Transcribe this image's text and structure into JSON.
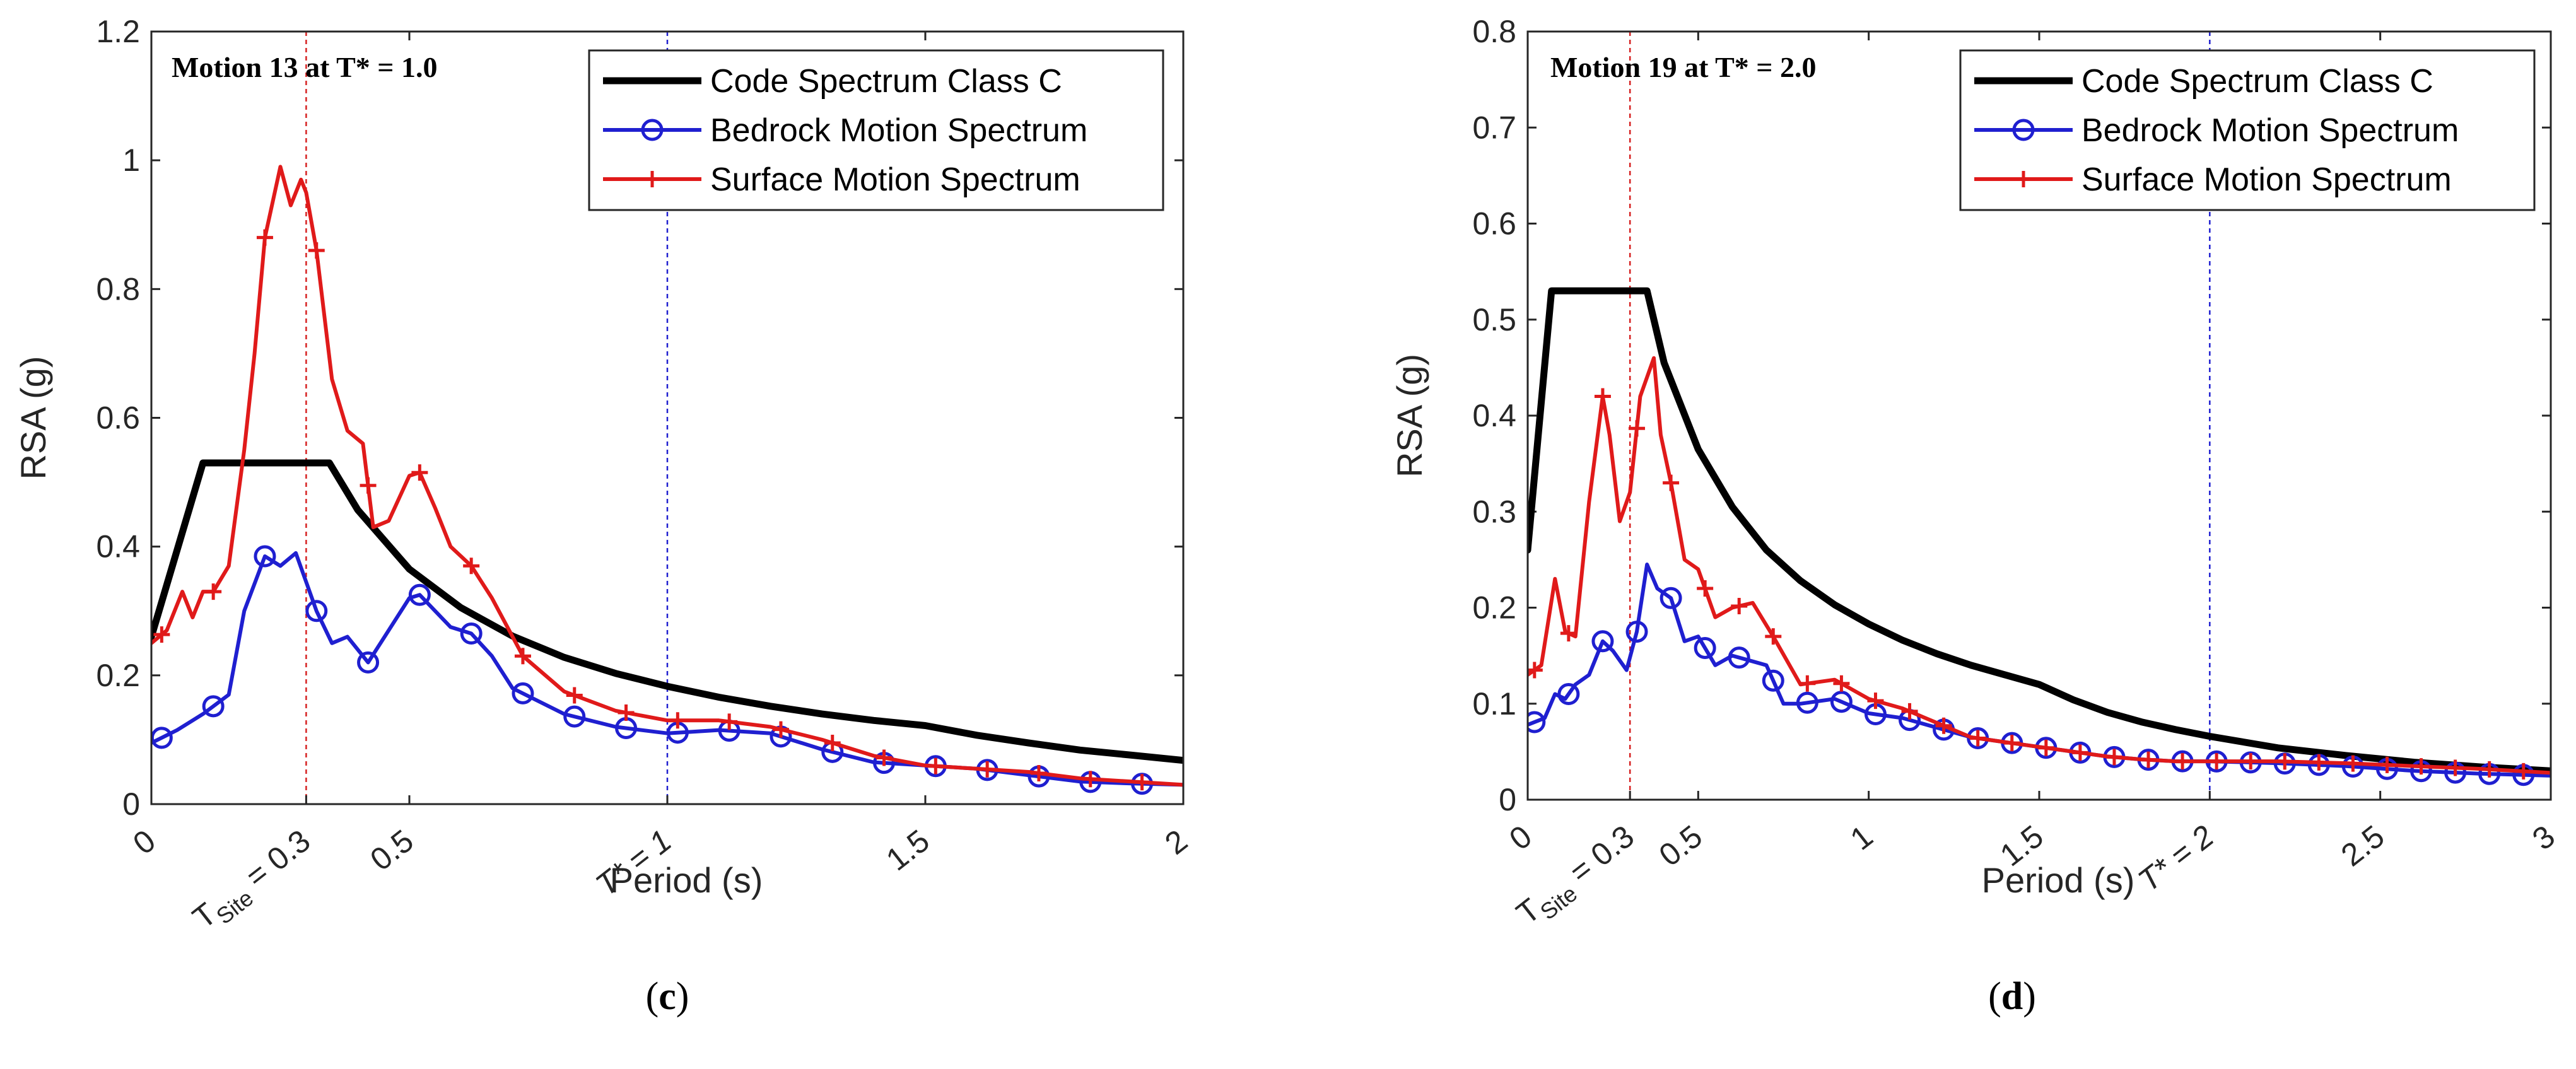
{
  "chart_data": [
    {
      "type": "line",
      "panel": "c",
      "caption_letter": "c",
      "annotation": "Motion 13 at T* = 1.0",
      "xlabel": "Period (s)",
      "ylabel": "RSA (g)",
      "xlim": [
        0,
        2
      ],
      "ylim": [
        0,
        1.2
      ],
      "xticks": [
        {
          "v": 0,
          "label": "0"
        },
        {
          "v": 0.5,
          "label": "0.5"
        },
        {
          "v": 1.5,
          "label": "1.5"
        },
        {
          "v": 2,
          "label": "2"
        }
      ],
      "yticks": [
        {
          "v": 0,
          "label": "0"
        },
        {
          "v": 0.2,
          "label": "0.2"
        },
        {
          "v": 0.4,
          "label": "0.4"
        },
        {
          "v": 0.6,
          "label": "0.6"
        },
        {
          "v": 0.8,
          "label": "0.8"
        },
        {
          "v": 1.0,
          "label": "1"
        },
        {
          "v": 1.2,
          "label": "1.2"
        }
      ],
      "vlines": [
        {
          "x": 0.3,
          "label": "T_Site = 0.3",
          "label_main": "T",
          "label_sub": "Site",
          "label_rest": " = 0.3",
          "color": "#d62020"
        },
        {
          "x": 1.0,
          "label": "T* = 1",
          "color": "#2020d0"
        }
      ],
      "series": [
        {
          "name": "Code Spectrum Class C",
          "color": "#000000",
          "marker": "none",
          "x": [
            0,
            0.1,
            0.1,
            0.345,
            0.4,
            0.5,
            0.6,
            0.7,
            0.8,
            0.9,
            1.0,
            1.1,
            1.2,
            1.3,
            1.4,
            1.5,
            1.6,
            1.7,
            1.8,
            1.9,
            2.0
          ],
          "y": [
            0.26,
            0.53,
            0.53,
            0.53,
            0.457,
            0.365,
            0.305,
            0.261,
            0.228,
            0.203,
            0.183,
            0.166,
            0.152,
            0.14,
            0.13,
            0.122,
            0.107,
            0.095,
            0.084,
            0.076,
            0.068
          ]
        },
        {
          "name": "Bedrock Motion Spectrum",
          "color": "#1f1fd0",
          "marker": "circle",
          "x": [
            0,
            0.05,
            0.1,
            0.15,
            0.18,
            0.22,
            0.25,
            0.28,
            0.3,
            0.32,
            0.35,
            0.38,
            0.42,
            0.46,
            0.5,
            0.52,
            0.55,
            0.58,
            0.62,
            0.66,
            0.7,
            0.75,
            0.8,
            0.9,
            1.0,
            1.1,
            1.2,
            1.3,
            1.4,
            1.5,
            1.6,
            1.7,
            1.8,
            1.9,
            2.0
          ],
          "y": [
            0.095,
            0.115,
            0.14,
            0.17,
            0.3,
            0.385,
            0.37,
            0.39,
            0.345,
            0.3,
            0.25,
            0.26,
            0.22,
            0.27,
            0.32,
            0.325,
            0.3,
            0.275,
            0.265,
            0.23,
            0.18,
            0.16,
            0.14,
            0.12,
            0.11,
            0.115,
            0.11,
            0.085,
            0.065,
            0.06,
            0.055,
            0.045,
            0.035,
            0.032,
            0.03
          ],
          "markers_x": [
            0.02,
            0.12,
            0.22,
            0.32,
            0.42,
            0.52,
            0.62,
            0.72,
            0.82,
            0.92,
            1.02,
            1.12,
            1.22,
            1.32,
            1.42,
            1.52,
            1.62,
            1.72,
            1.82,
            1.92
          ]
        },
        {
          "name": "Surface Motion Spectrum",
          "color": "#e01a1a",
          "marker": "plus",
          "x": [
            0,
            0.03,
            0.06,
            0.08,
            0.1,
            0.12,
            0.15,
            0.18,
            0.2,
            0.22,
            0.25,
            0.27,
            0.29,
            0.3,
            0.32,
            0.35,
            0.38,
            0.41,
            0.43,
            0.46,
            0.5,
            0.52,
            0.55,
            0.58,
            0.62,
            0.66,
            0.72,
            0.8,
            0.9,
            1.0,
            1.1,
            1.2,
            1.3,
            1.4,
            1.5,
            1.6,
            1.7,
            1.8,
            1.9,
            2.0
          ],
          "y": [
            0.25,
            0.27,
            0.33,
            0.29,
            0.33,
            0.33,
            0.37,
            0.55,
            0.7,
            0.88,
            0.99,
            0.93,
            0.97,
            0.95,
            0.86,
            0.66,
            0.58,
            0.56,
            0.43,
            0.44,
            0.51,
            0.515,
            0.46,
            0.4,
            0.37,
            0.32,
            0.23,
            0.175,
            0.145,
            0.13,
            0.13,
            0.12,
            0.1,
            0.075,
            0.06,
            0.055,
            0.05,
            0.04,
            0.035,
            0.03
          ],
          "markers_x": [
            0.02,
            0.12,
            0.22,
            0.32,
            0.42,
            0.52,
            0.62,
            0.72,
            0.82,
            0.92,
            1.02,
            1.12,
            1.22,
            1.32,
            1.42,
            1.52,
            1.62,
            1.72,
            1.82,
            1.92
          ]
        }
      ]
    },
    {
      "type": "line",
      "panel": "d",
      "caption_letter": "d",
      "annotation": "Motion 19 at T* = 2.0",
      "xlabel": "Period (s)",
      "ylabel": "RSA (g)",
      "xlim": [
        0,
        3
      ],
      "ylim": [
        0,
        0.8
      ],
      "xticks": [
        {
          "v": 0,
          "label": "0"
        },
        {
          "v": 0.5,
          "label": "0.5"
        },
        {
          "v": 1,
          "label": "1"
        },
        {
          "v": 1.5,
          "label": "1.5"
        },
        {
          "v": 2.5,
          "label": "2.5"
        },
        {
          "v": 3,
          "label": "3"
        }
      ],
      "yticks": [
        {
          "v": 0,
          "label": "0"
        },
        {
          "v": 0.1,
          "label": "0.1"
        },
        {
          "v": 0.2,
          "label": "0.2"
        },
        {
          "v": 0.3,
          "label": "0.3"
        },
        {
          "v": 0.4,
          "label": "0.4"
        },
        {
          "v": 0.5,
          "label": "0.5"
        },
        {
          "v": 0.6,
          "label": "0.6"
        },
        {
          "v": 0.7,
          "label": "0.7"
        },
        {
          "v": 0.8,
          "label": "0.8"
        }
      ],
      "vlines": [
        {
          "x": 0.3,
          "label": "T_Site = 0.3",
          "label_main": "T",
          "label_sub": "Site",
          "label_rest": " = 0.3",
          "color": "#d62020"
        },
        {
          "x": 2.0,
          "label": "T* = 2",
          "color": "#2020d0"
        }
      ],
      "series": [
        {
          "name": "Code Spectrum Class C",
          "color": "#000000",
          "marker": "none",
          "x": [
            0,
            0.07,
            0.07,
            0.35,
            0.4,
            0.5,
            0.6,
            0.7,
            0.8,
            0.9,
            1.0,
            1.1,
            1.2,
            1.3,
            1.4,
            1.5,
            1.6,
            1.7,
            1.8,
            1.9,
            2.0,
            2.2,
            2.4,
            2.6,
            2.8,
            3.0
          ],
          "y": [
            0.26,
            0.53,
            0.53,
            0.53,
            0.455,
            0.365,
            0.305,
            0.26,
            0.228,
            0.203,
            0.183,
            0.166,
            0.152,
            0.14,
            0.13,
            0.12,
            0.104,
            0.091,
            0.081,
            0.073,
            0.066,
            0.054,
            0.046,
            0.039,
            0.034,
            0.03
          ]
        },
        {
          "name": "Bedrock Motion Spectrum",
          "color": "#1f1fd0",
          "marker": "circle",
          "x": [
            0,
            0.05,
            0.08,
            0.11,
            0.14,
            0.18,
            0.22,
            0.25,
            0.29,
            0.32,
            0.35,
            0.38,
            0.42,
            0.46,
            0.5,
            0.55,
            0.6,
            0.65,
            0.7,
            0.75,
            0.8,
            0.9,
            1.0,
            1.1,
            1.2,
            1.3,
            1.4,
            1.5,
            1.6,
            1.7,
            1.8,
            1.9,
            2.0,
            2.2,
            2.4,
            2.6,
            2.8,
            3.0
          ],
          "y": [
            0.078,
            0.085,
            0.11,
            0.105,
            0.12,
            0.13,
            0.165,
            0.155,
            0.135,
            0.175,
            0.245,
            0.22,
            0.21,
            0.165,
            0.17,
            0.14,
            0.15,
            0.145,
            0.14,
            0.1,
            0.1,
            0.105,
            0.09,
            0.085,
            0.075,
            0.065,
            0.06,
            0.055,
            0.05,
            0.045,
            0.042,
            0.04,
            0.04,
            0.038,
            0.035,
            0.03,
            0.027,
            0.025
          ],
          "markers_x": [
            0.02,
            0.12,
            0.22,
            0.32,
            0.42,
            0.52,
            0.62,
            0.72,
            0.82,
            0.92,
            1.02,
            1.12,
            1.22,
            1.32,
            1.42,
            1.52,
            1.62,
            1.72,
            1.82,
            1.92,
            2.02,
            2.12,
            2.22,
            2.32,
            2.42,
            2.52,
            2.62,
            2.72,
            2.82,
            2.92
          ]
        },
        {
          "name": "Surface Motion Spectrum",
          "color": "#e01a1a",
          "marker": "plus",
          "x": [
            0,
            0.04,
            0.08,
            0.11,
            0.14,
            0.18,
            0.22,
            0.24,
            0.27,
            0.3,
            0.33,
            0.37,
            0.39,
            0.42,
            0.46,
            0.5,
            0.55,
            0.6,
            0.66,
            0.72,
            0.8,
            0.9,
            1.0,
            1.1,
            1.2,
            1.3,
            1.4,
            1.5,
            1.6,
            1.7,
            1.8,
            1.9,
            2.0,
            2.2,
            2.4,
            2.6,
            2.8,
            3.0
          ],
          "y": [
            0.13,
            0.14,
            0.23,
            0.175,
            0.17,
            0.31,
            0.42,
            0.38,
            0.29,
            0.32,
            0.42,
            0.46,
            0.38,
            0.33,
            0.25,
            0.24,
            0.19,
            0.2,
            0.205,
            0.17,
            0.12,
            0.125,
            0.105,
            0.095,
            0.08,
            0.065,
            0.06,
            0.055,
            0.05,
            0.045,
            0.042,
            0.04,
            0.04,
            0.04,
            0.038,
            0.035,
            0.032,
            0.028
          ],
          "markers_x": [
            0.02,
            0.12,
            0.22,
            0.32,
            0.42,
            0.52,
            0.62,
            0.72,
            0.82,
            0.92,
            1.02,
            1.12,
            1.22,
            1.32,
            1.42,
            1.52,
            1.62,
            1.72,
            1.82,
            1.92,
            2.02,
            2.12,
            2.22,
            2.32,
            2.42,
            2.52,
            2.62,
            2.72,
            2.82,
            2.92
          ]
        }
      ]
    }
  ]
}
